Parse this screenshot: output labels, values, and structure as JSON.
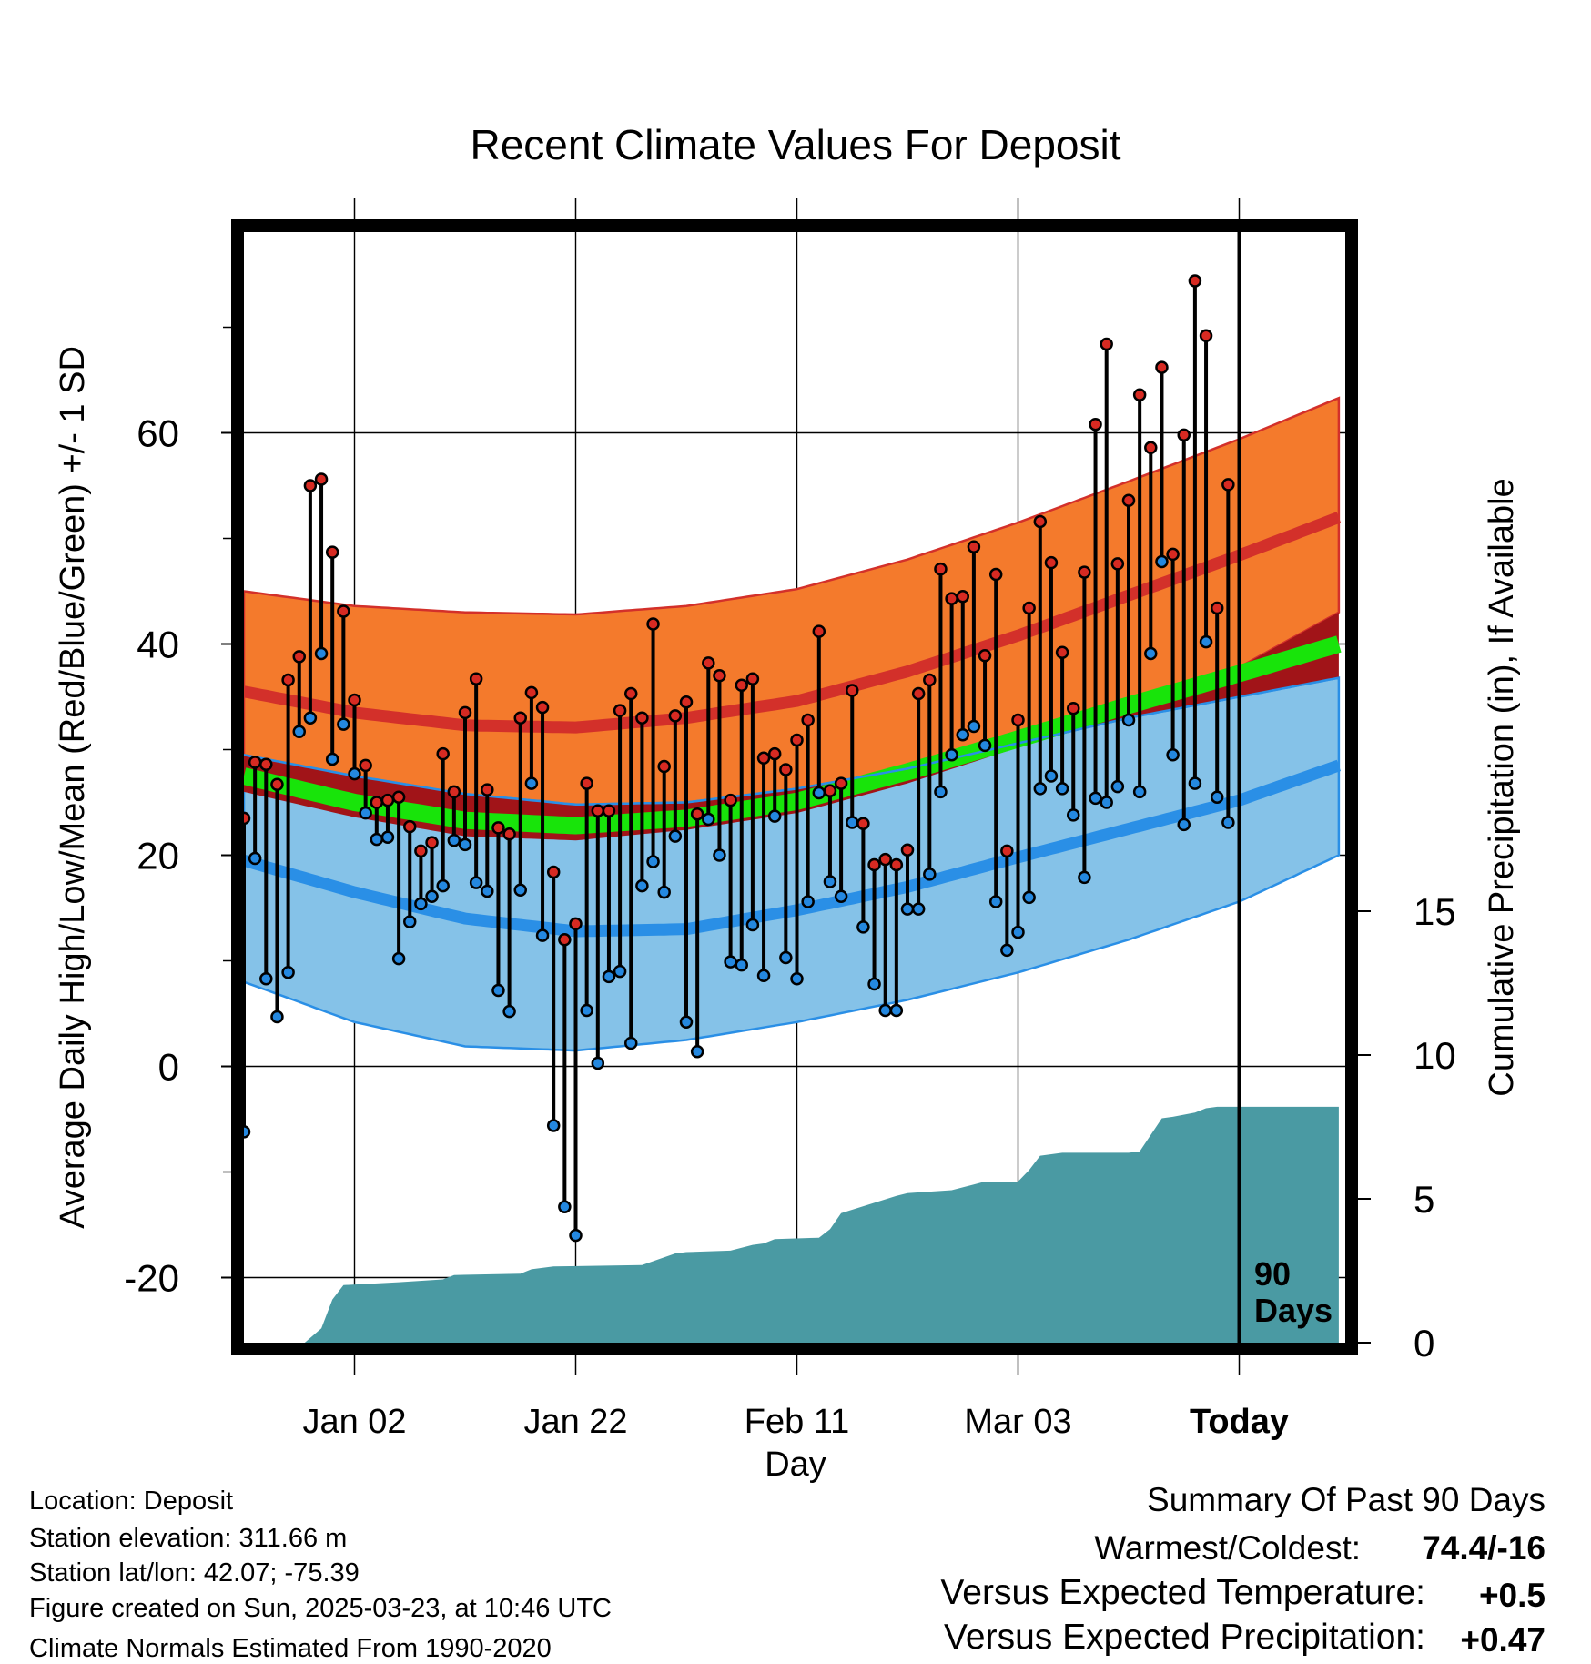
{
  "chart_data": {
    "type": "line",
    "title": "Recent Climate Values For Deposit",
    "xlabel": "Day",
    "ylabel": "Average Daily High/Low/Mean (Red/Blue/Green) +/- 1 SD",
    "y2label": "Cumulative Precipitation (in), If Available",
    "ylim": [
      -26,
      80
    ],
    "y2lim": [
      0,
      28
    ],
    "xlim": [
      -10,
      100
    ],
    "x_ticks": [
      {
        "day": 10,
        "label": "Jan 02"
      },
      {
        "day": 30,
        "label": "Jan 22"
      },
      {
        "day": 50,
        "label": "Feb 11"
      },
      {
        "day": 70,
        "label": "Mar 03"
      },
      {
        "day": 90,
        "label": "Today"
      }
    ],
    "y_ticks": [
      -20,
      0,
      20,
      40,
      60
    ],
    "y_ticks_minor": [
      -10,
      10,
      30,
      50,
      70
    ],
    "y2_ticks": [
      0,
      5,
      10,
      15
    ],
    "grid": true,
    "today_marker": {
      "day": 90,
      "label_line1": "90",
      "label_line2": "Days"
    },
    "normals": {
      "days": [
        0,
        10,
        20,
        30,
        40,
        50,
        60,
        70,
        80,
        90,
        99
      ],
      "high_mean": [
        35.5,
        33.5,
        32.3,
        32.1,
        33.0,
        34.6,
        37.4,
        40.8,
        44.6,
        48.4,
        52.0
      ],
      "high_plus_sd": [
        45.0,
        43.6,
        43.0,
        42.8,
        43.6,
        45.2,
        48.0,
        51.5,
        55.4,
        59.4,
        63.3
      ],
      "high_minus_sd": [
        26.0,
        23.6,
        21.8,
        21.4,
        22.4,
        24.0,
        26.8,
        30.2,
        33.8,
        37.8,
        43.0
      ],
      "mean_mean": [
        27.5,
        25.0,
        23.3,
        22.8,
        23.5,
        25.1,
        27.9,
        31.0,
        34.2,
        37.2,
        40.0
      ],
      "low_mean": [
        19.5,
        16.5,
        14.0,
        12.8,
        13.0,
        14.8,
        17.0,
        19.8,
        22.5,
        25.2,
        28.5
      ],
      "low_plus_sd": [
        29.5,
        27.5,
        25.8,
        24.8,
        25.0,
        26.3,
        28.2,
        30.6,
        33.0,
        35.0,
        36.8
      ],
      "low_minus_sd": [
        8.0,
        4.2,
        1.9,
        1.5,
        2.5,
        4.2,
        6.3,
        8.9,
        12.0,
        15.6,
        20.0
      ]
    },
    "daily": {
      "days": [
        0,
        1,
        2,
        3,
        4,
        5,
        6,
        7,
        8,
        9,
        10,
        11,
        12,
        13,
        14,
        15,
        16,
        17,
        18,
        19,
        20,
        21,
        22,
        23,
        24,
        25,
        26,
        27,
        28,
        29,
        30,
        31,
        32,
        33,
        34,
        35,
        36,
        37,
        38,
        39,
        40,
        41,
        42,
        43,
        44,
        45,
        46,
        47,
        48,
        49,
        50,
        51,
        52,
        53,
        54,
        55,
        56,
        57,
        58,
        59,
        60,
        61,
        62,
        63,
        64,
        65,
        66,
        67,
        68,
        69,
        70,
        71,
        72,
        73,
        74,
        75,
        76,
        77,
        78,
        79,
        80,
        81,
        82,
        83,
        84,
        85,
        86,
        87,
        88,
        89
      ],
      "high": [
        23.5,
        28.8,
        28.6,
        26.7,
        36.6,
        38.8,
        55.0,
        55.6,
        48.7,
        43.1,
        34.7,
        28.5,
        25.0,
        25.2,
        25.5,
        22.7,
        20.4,
        21.2,
        29.6,
        26.0,
        33.5,
        36.7,
        26.2,
        22.6,
        22.0,
        33.0,
        35.4,
        34.0,
        18.4,
        12.0,
        13.5,
        26.8,
        24.2,
        24.2,
        33.7,
        35.3,
        33.0,
        41.9,
        28.4,
        33.2,
        34.5,
        23.9,
        38.2,
        37.0,
        25.2,
        36.1,
        36.7,
        29.2,
        29.6,
        28.1,
        30.9,
        32.8,
        41.2,
        26.1,
        26.8,
        35.6,
        23.0,
        19.1,
        19.6,
        19.1,
        20.5,
        35.3,
        36.6,
        47.1,
        44.3,
        44.5,
        49.2,
        38.9,
        46.6,
        20.4,
        32.8,
        43.4,
        51.6,
        47.7,
        39.2,
        33.9,
        46.8,
        60.8,
        68.4,
        47.6,
        53.6,
        63.6,
        58.6,
        66.2,
        48.5,
        59.8,
        74.4,
        69.2,
        43.4,
        55.1
      ],
      "low": [
        -6.2,
        19.7,
        8.3,
        4.7,
        8.9,
        31.7,
        33.0,
        39.1,
        29.1,
        32.4,
        27.7,
        24.0,
        21.5,
        21.7,
        10.2,
        13.7,
        15.4,
        16.1,
        17.1,
        21.4,
        21.0,
        17.4,
        16.6,
        7.2,
        5.2,
        16.7,
        26.8,
        12.4,
        -5.6,
        -13.3,
        -16.0,
        5.3,
        0.3,
        8.5,
        9.0,
        2.2,
        17.1,
        19.4,
        16.5,
        21.8,
        4.2,
        1.4,
        23.4,
        20.0,
        9.9,
        9.6,
        13.4,
        8.6,
        23.7,
        10.3,
        8.3,
        15.6,
        25.9,
        17.5,
        16.1,
        23.1,
        13.2,
        7.8,
        5.3,
        5.3,
        14.9,
        14.9,
        18.2,
        26.0,
        29.5,
        31.4,
        32.2,
        30.4,
        15.6,
        11.0,
        12.7,
        16.0,
        26.3,
        27.5,
        26.3,
        23.8,
        17.9,
        25.4,
        25.0,
        26.5,
        32.8,
        26.0,
        39.1,
        47.8,
        29.5,
        22.9,
        26.8,
        40.2,
        25.5,
        23.1
      ]
    },
    "precip": {
      "days": [
        5.5,
        7,
        8,
        9,
        14,
        18,
        19,
        25,
        26,
        28,
        36,
        39,
        40,
        44,
        46,
        47,
        48,
        52,
        53,
        54,
        59,
        60,
        62,
        64,
        66,
        67,
        70,
        71,
        72,
        74,
        79,
        80,
        81,
        83,
        84,
        86,
        87,
        88,
        99
      ],
      "values": [
        0,
        0.5,
        1.5,
        2.0,
        2.1,
        2.2,
        2.35,
        2.4,
        2.55,
        2.65,
        2.7,
        3.1,
        3.15,
        3.2,
        3.4,
        3.45,
        3.6,
        3.65,
        3.95,
        4.5,
        5.1,
        5.2,
        5.25,
        5.3,
        5.5,
        5.6,
        5.6,
        6.0,
        6.5,
        6.6,
        6.6,
        6.6,
        6.65,
        7.8,
        7.85,
        8.0,
        8.15,
        8.2,
        8.2
      ]
    },
    "colors": {
      "high_band": "#f47a2c",
      "high_edge": "#d3302a",
      "high_mean": "#d3302a",
      "low_band": "#85c2e8",
      "low_edge": "#2a8fe6",
      "low_mean": "#2a8fe6",
      "mean_line": "#18e40a",
      "overlap": "#a11418",
      "high_dot": "#d72a22",
      "low_dot": "#2488e0",
      "precip_fill": "#4a9aa3",
      "warm": "#d32a25",
      "wet": "#18c51a"
    }
  },
  "footer": {
    "location": "Location: Deposit",
    "elevation": "Station elevation: 311.66 m",
    "latlon": "Station lat/lon: 42.07; -75.39",
    "created": "Figure created on Sun, 2025-03-23, at 10:46 UTC",
    "normals": "Climate Normals Estimated From 1990-2020"
  },
  "summary": {
    "title": "Summary Of Past 90 Days",
    "warm_cold_label": "Warmest/Coldest:",
    "warm_cold_value": "74.4/-16",
    "temp_label": "Versus Expected Temperature:",
    "temp_value": "+0.5",
    "precip_label": "Versus Expected Precipitation:",
    "precip_value": "+0.47"
  }
}
